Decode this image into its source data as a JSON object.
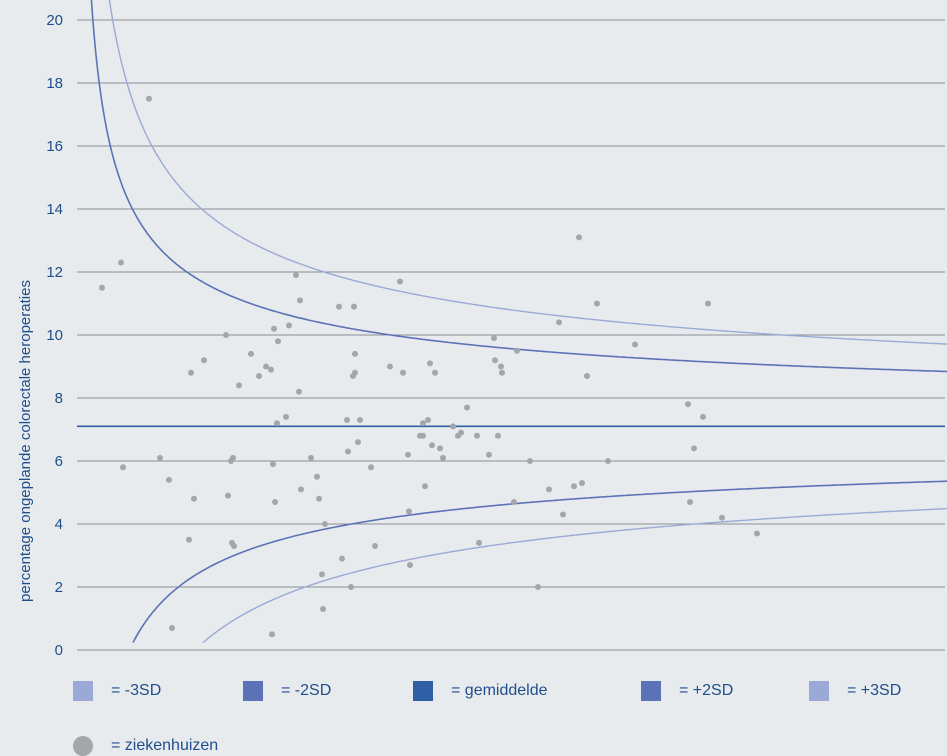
{
  "chart_data": {
    "type": "scatter",
    "ylabel": "percentage ongeplande colorectale heroperaties",
    "xlabel": "",
    "ylim": [
      0,
      20
    ],
    "yticks": [
      "0",
      "2",
      "4",
      "6",
      "8",
      "10",
      "12",
      "14",
      "16",
      "18",
      "20"
    ],
    "mean": 7.1,
    "grid": true,
    "colors": {
      "sd3": "#9aa9d6",
      "sd2": "#5c72b6",
      "mean": "#2f5fa5",
      "points": "#a3a6ab",
      "grid": "#8a8f96",
      "text": "#1f4e8c"
    },
    "points": [
      [
        25,
        11.5
      ],
      [
        44,
        12.3
      ],
      [
        46,
        5.8
      ],
      [
        72,
        17.5
      ],
      [
        83,
        6.1
      ],
      [
        92,
        5.4
      ],
      [
        95,
        0.7
      ],
      [
        112,
        3.5
      ],
      [
        114,
        8.8
      ],
      [
        117,
        4.8
      ],
      [
        127,
        9.2
      ],
      [
        149,
        10.0
      ],
      [
        151,
        4.9
      ],
      [
        154,
        6.0
      ],
      [
        155,
        3.4
      ],
      [
        156,
        6.1
      ],
      [
        157,
        3.3
      ],
      [
        162,
        8.4
      ],
      [
        174,
        9.4
      ],
      [
        182,
        8.7
      ],
      [
        189,
        9.0
      ],
      [
        194,
        8.9
      ],
      [
        195,
        0.5
      ],
      [
        196,
        5.9
      ],
      [
        197,
        10.2
      ],
      [
        198,
        4.7
      ],
      [
        200,
        7.2
      ],
      [
        201,
        9.8
      ],
      [
        209,
        7.4
      ],
      [
        212,
        10.3
      ],
      [
        219,
        11.9
      ],
      [
        222,
        8.2
      ],
      [
        223,
        11.1
      ],
      [
        224,
        5.1
      ],
      [
        234,
        6.1
      ],
      [
        240,
        5.5
      ],
      [
        242,
        4.8
      ],
      [
        245,
        2.4
      ],
      [
        246,
        1.3
      ],
      [
        248,
        4.0
      ],
      [
        262,
        10.9
      ],
      [
        265,
        2.9
      ],
      [
        270,
        7.3
      ],
      [
        271,
        6.3
      ],
      [
        274,
        2.0
      ],
      [
        276,
        8.7
      ],
      [
        277,
        10.9
      ],
      [
        278,
        9.4
      ],
      [
        278,
        8.8
      ],
      [
        281,
        6.6
      ],
      [
        283,
        7.3
      ],
      [
        294,
        5.8
      ],
      [
        298,
        3.3
      ],
      [
        313,
        9.0
      ],
      [
        323,
        11.7
      ],
      [
        326,
        8.8
      ],
      [
        331,
        6.2
      ],
      [
        332,
        4.4
      ],
      [
        333,
        2.7
      ],
      [
        343,
        6.8
      ],
      [
        346,
        6.8
      ],
      [
        346,
        7.2
      ],
      [
        348,
        5.2
      ],
      [
        351,
        7.3
      ],
      [
        353,
        9.1
      ],
      [
        355,
        6.5
      ],
      [
        358,
        8.8
      ],
      [
        363,
        6.4
      ],
      [
        366,
        6.1
      ],
      [
        376,
        7.1
      ],
      [
        381,
        6.8
      ],
      [
        384,
        6.9
      ],
      [
        390,
        7.7
      ],
      [
        400,
        6.8
      ],
      [
        402,
        3.4
      ],
      [
        412,
        6.2
      ],
      [
        417,
        9.9
      ],
      [
        418,
        9.2
      ],
      [
        421,
        6.8
      ],
      [
        424,
        9.0
      ],
      [
        425,
        8.8
      ],
      [
        437,
        4.7
      ],
      [
        440,
        9.5
      ],
      [
        453,
        6.0
      ],
      [
        461,
        2.0
      ],
      [
        472,
        5.1
      ],
      [
        482,
        10.4
      ],
      [
        486,
        4.3
      ],
      [
        497,
        5.2
      ],
      [
        502,
        13.1
      ],
      [
        505,
        5.3
      ],
      [
        510,
        8.7
      ],
      [
        520,
        11.0
      ],
      [
        531,
        6.0
      ],
      [
        558,
        9.7
      ],
      [
        611,
        7.8
      ],
      [
        613,
        4.7
      ],
      [
        617,
        6.4
      ],
      [
        626,
        7.4
      ],
      [
        631,
        11.0
      ],
      [
        645,
        4.2
      ],
      [
        680,
        3.7
      ]
    ]
  },
  "legend": {
    "minus3sd": "= -3SD",
    "minus2sd": "= -2SD",
    "mean": "= gemiddelde",
    "plus2sd": "= +2SD",
    "plus3sd": "= +3SD",
    "hospitals": "= ziekenhuizen"
  }
}
